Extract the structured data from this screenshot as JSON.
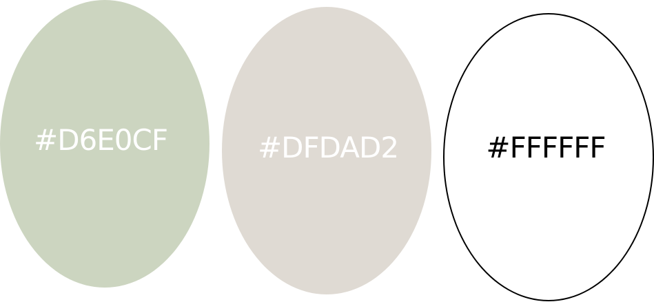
{
  "swatches": [
    {
      "label": "#D6E0CF",
      "fill": "#CCD5C0"
    },
    {
      "label": "#DFDAD2",
      "fill": "#DFDAD3"
    },
    {
      "label": "#FFFFFF",
      "fill": "#FFFFFF",
      "outline": "#000000"
    }
  ]
}
